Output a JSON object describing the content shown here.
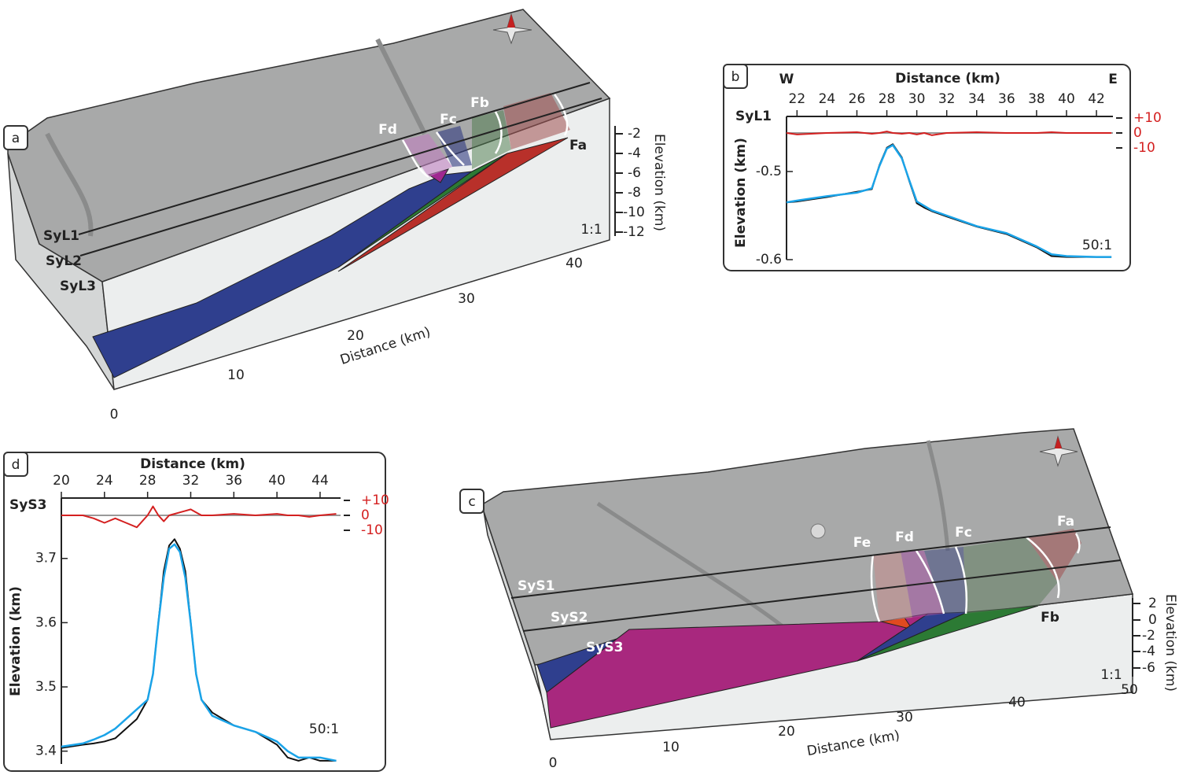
{
  "panels": {
    "a": {
      "label": "a",
      "faults": [
        "Fd",
        "Fc",
        "Fb",
        "Fa"
      ],
      "profiles": [
        "SyL1",
        "SyL2",
        "SyL3"
      ],
      "scale": "1:1",
      "elevation_title": "Elevation (km)",
      "elevation_ticks": [
        "-2",
        "-4",
        "-6",
        "-8",
        "-10",
        "-12"
      ],
      "distance_title": "Distance (km)",
      "distance_ticks": [
        "0",
        "10",
        "20",
        "30",
        "40"
      ]
    },
    "c": {
      "label": "c",
      "faults": [
        "Fe",
        "Fd",
        "Fc",
        "Fa",
        "Fb"
      ],
      "profiles": [
        "SyS1",
        "SyS2",
        "SyS3"
      ],
      "scale": "1:1",
      "elevation_title": "Elevation (km)",
      "elevation_ticks": [
        "2",
        "0",
        "-2",
        "-4",
        "-6"
      ],
      "distance_title": "Distance (km)",
      "distance_ticks": [
        "0",
        "10",
        "20",
        "30",
        "40",
        "50"
      ]
    }
  },
  "chart_data": [
    {
      "type": "line",
      "panel": "b",
      "direction_labels": [
        "W",
        "E"
      ],
      "profile": "SyL1",
      "scale": "50:1",
      "xlabel": "Distance (km)",
      "ylabel": "Elevation (km)",
      "x": [
        21.3,
        22,
        24,
        26,
        27,
        27.5,
        28,
        28.4,
        29,
        29.5,
        30,
        30.5,
        31,
        32,
        34,
        36,
        38,
        39,
        40,
        42,
        43
      ],
      "xlim": [
        21.3,
        43.1
      ],
      "xticks": [
        22,
        24,
        26,
        28,
        30,
        32,
        34,
        36,
        38,
        40,
        42
      ],
      "ylim": [
        -0.6,
        -0.4375
      ],
      "yticks": [
        -0.6,
        -0.5
      ],
      "y2lim": [
        -10,
        10
      ],
      "y2ticks": [
        {
          "value": 10,
          "label": "+10"
        },
        0,
        -10
      ],
      "series": [
        {
          "color": "#111111",
          "values": [
            -0.535,
            -0.534,
            -0.529,
            -0.523,
            -0.52,
            -0.493,
            -0.473,
            -0.469,
            -0.484,
            -0.511,
            -0.536,
            -0.541,
            -0.545,
            -0.551,
            -0.5625,
            -0.571,
            -0.586,
            -0.596,
            -0.597,
            -0.597,
            -0.597
          ]
        },
        {
          "color": "#1aa3e8",
          "values": [
            -0.535,
            -0.533,
            -0.528,
            -0.524,
            -0.519,
            -0.494,
            -0.474,
            -0.47,
            -0.485,
            -0.51,
            -0.534,
            -0.539,
            -0.544,
            -0.55,
            -0.562,
            -0.57,
            -0.585,
            -0.594,
            -0.596,
            -0.597,
            -0.597
          ]
        },
        {
          "color": "#d42020",
          "axis": "y2",
          "values": [
            0,
            -1,
            0,
            0.5,
            -0.5,
            0,
            1,
            0,
            -0.5,
            0,
            -1,
            0,
            -1.5,
            0,
            0.5,
            0,
            0,
            0.5,
            0,
            0,
            0
          ]
        }
      ]
    },
    {
      "type": "line",
      "panel": "d",
      "profile": "SyS3",
      "scale": "50:1",
      "xlabel": "Distance (km)",
      "ylabel": "Elevation (km)",
      "x": [
        20,
        22,
        23,
        24,
        25,
        26,
        27,
        28,
        28.5,
        29,
        29.5,
        30,
        30.5,
        31,
        31.5,
        32,
        32.5,
        33,
        34,
        36,
        38,
        40,
        41,
        42,
        43,
        44,
        45.5
      ],
      "xlim": [
        20,
        45.9
      ],
      "xticks": [
        20,
        24,
        28,
        32,
        36,
        40,
        44
      ],
      "ylim": [
        3.38,
        3.794
      ],
      "yticks": [
        3.4,
        3.5,
        3.6,
        3.7
      ],
      "y2lim": [
        -10,
        10
      ],
      "y2ticks": [
        {
          "value": 10,
          "label": "+10"
        },
        0,
        -10
      ],
      "series": [
        {
          "color": "#111111",
          "values": [
            3.405,
            3.41,
            3.412,
            3.415,
            3.42,
            3.435,
            3.45,
            3.48,
            3.52,
            3.6,
            3.68,
            3.72,
            3.73,
            3.715,
            3.68,
            3.6,
            3.52,
            3.48,
            3.46,
            3.44,
            3.43,
            3.41,
            3.39,
            3.385,
            3.39,
            3.385,
            3.385
          ]
        },
        {
          "color": "#1aa3e8",
          "values": [
            3.407,
            3.412,
            3.418,
            3.425,
            3.435,
            3.45,
            3.465,
            3.48,
            3.52,
            3.6,
            3.67,
            3.715,
            3.722,
            3.71,
            3.67,
            3.6,
            3.52,
            3.48,
            3.455,
            3.44,
            3.43,
            3.415,
            3.4,
            3.39,
            3.39,
            3.39,
            3.385
          ]
        },
        {
          "color": "#d42020",
          "axis": "y2",
          "values": [
            0,
            0,
            -2,
            -5,
            -2,
            -5,
            -8,
            0,
            6,
            0,
            -4,
            0,
            1,
            2,
            3,
            4,
            2,
            0,
            0,
            1,
            0,
            1,
            0,
            0,
            -1,
            0,
            1
          ]
        }
      ]
    }
  ]
}
